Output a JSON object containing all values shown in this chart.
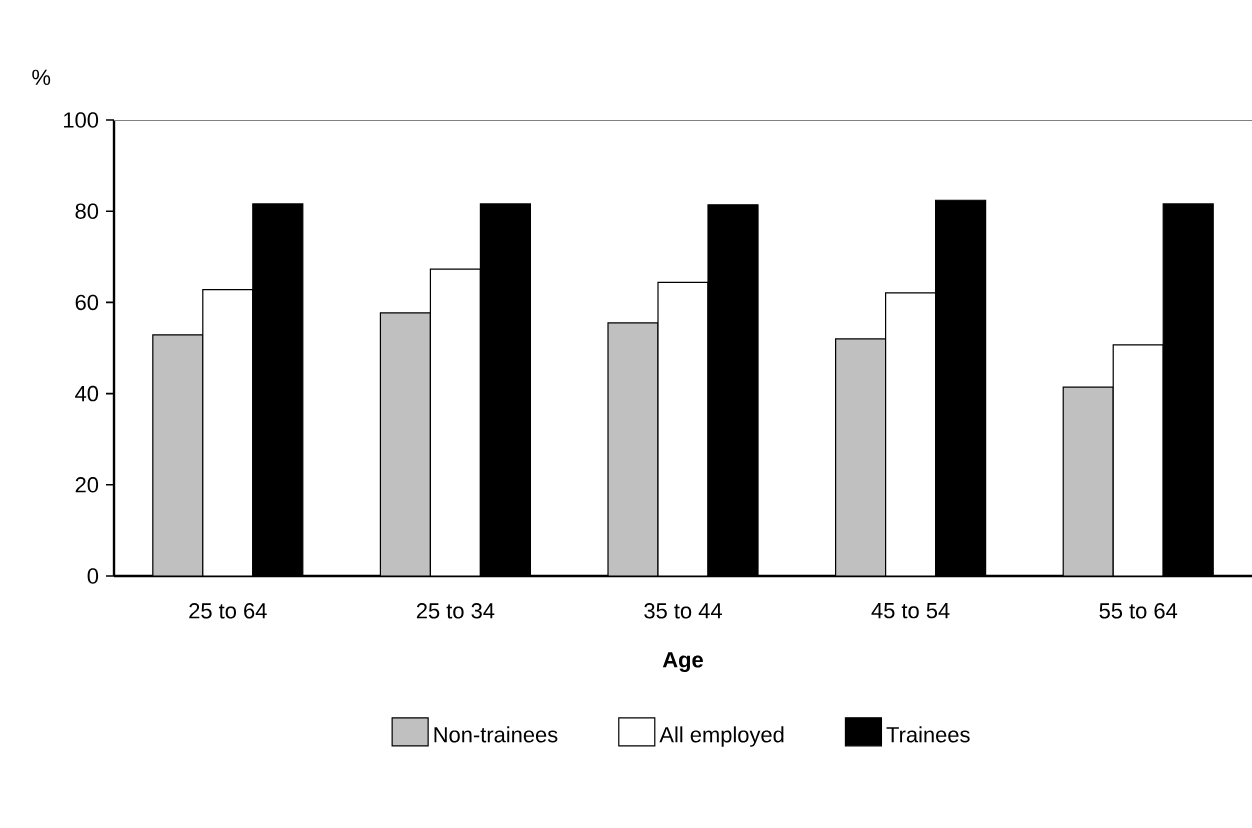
{
  "chart_data": {
    "type": "bar",
    "xlabel": "Age",
    "ylabel": "%",
    "categories": [
      "25 to 64",
      "25 to 34",
      "35 to 44",
      "45 to 54",
      "55 to 64"
    ],
    "series": [
      {
        "name": "Non-trainees",
        "color": "#c0c0c0",
        "values": [
          52.9,
          57.7,
          55.5,
          52.0,
          41.4
        ]
      },
      {
        "name": "All employed",
        "color": "#ffffff",
        "values": [
          62.8,
          67.3,
          64.4,
          62.1,
          50.7
        ]
      },
      {
        "name": "Trainees",
        "color": "#000000",
        "values": [
          81.6,
          81.6,
          81.4,
          82.4,
          81.6
        ]
      }
    ],
    "ylim": [
      0,
      100
    ],
    "yticks": [
      0,
      20,
      40,
      60,
      80,
      100
    ],
    "grid": false,
    "legend": "bottom"
  }
}
